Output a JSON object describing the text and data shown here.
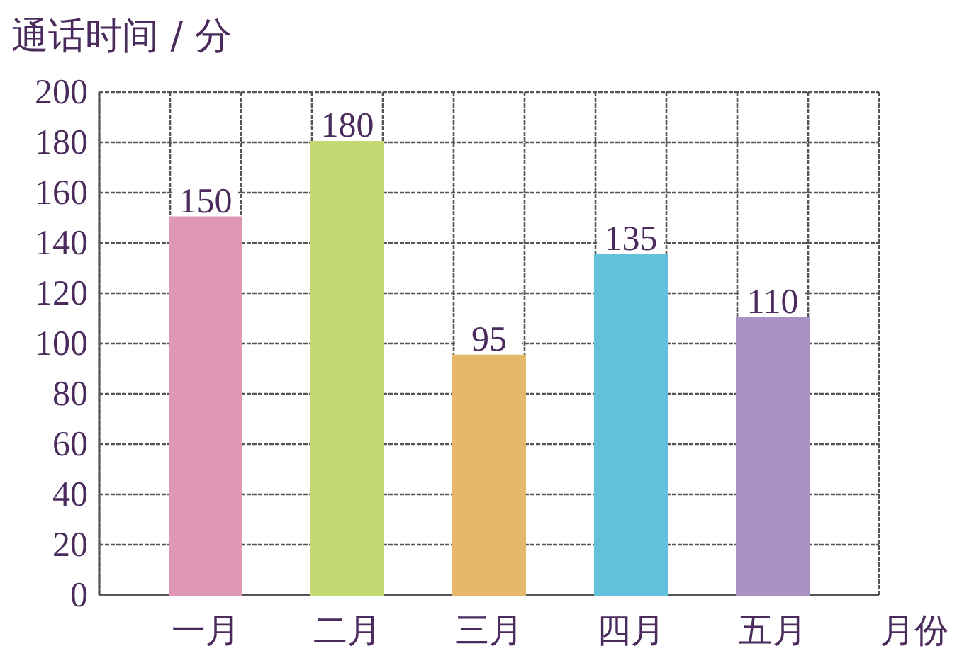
{
  "chart_data": {
    "type": "bar",
    "ylabel": "通话时间 / 分",
    "xlabel": "月份",
    "categories": [
      "一月",
      "二月",
      "三月",
      "四月",
      "五月"
    ],
    "values": [
      150,
      180,
      95,
      135,
      110
    ],
    "colors": [
      "#f7a8c8",
      "#d8f27e",
      "#ffcc78",
      "#6fd6f4",
      "#bda2dc"
    ],
    "ylim": [
      0,
      200
    ],
    "yticks": [
      0,
      20,
      40,
      60,
      80,
      100,
      120,
      140,
      160,
      180,
      200
    ],
    "grid": true,
    "data_labels": true
  }
}
